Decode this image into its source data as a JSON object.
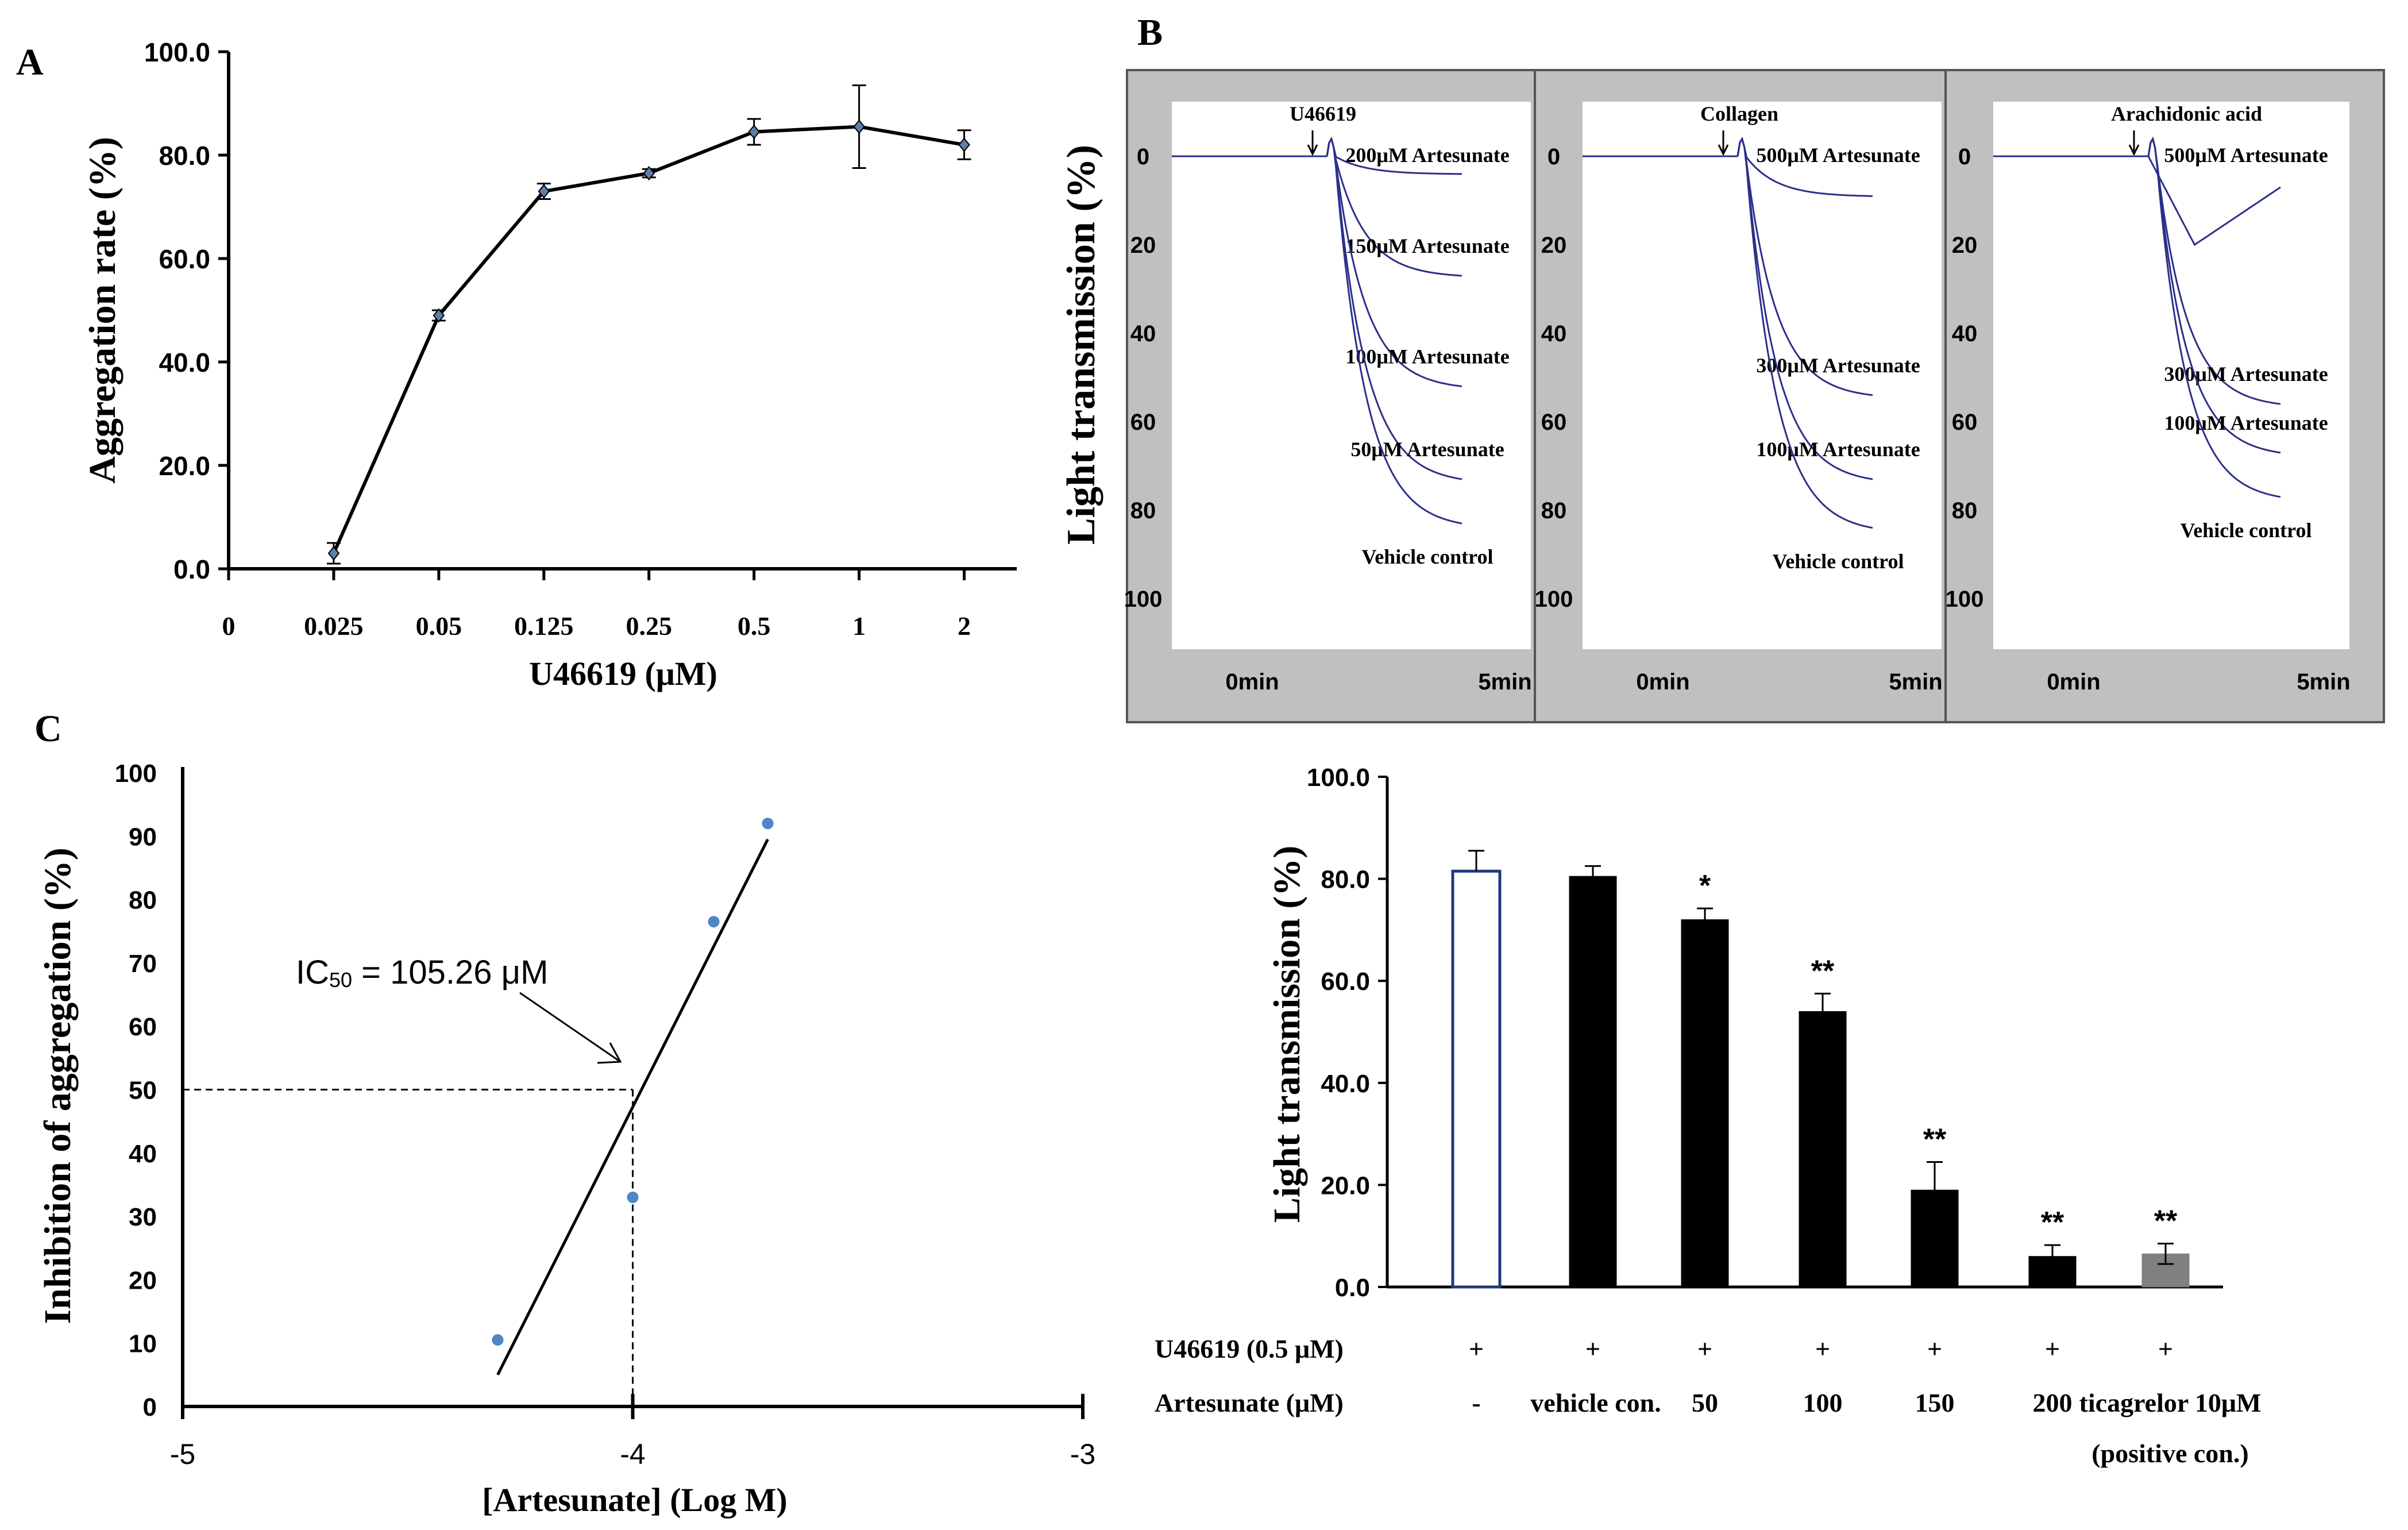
{
  "panel_labels": {
    "a": "A",
    "b": "B",
    "c": "C"
  },
  "chart_data": [
    {
      "id": "A",
      "type": "line",
      "categories": [
        "0",
        "0.025",
        "0.05",
        "0.125",
        "0.25",
        "0.5",
        "1",
        "2"
      ],
      "values": [
        null,
        3.0,
        49.0,
        73.0,
        76.5,
        84.5,
        85.5,
        82.0
      ],
      "errors": [
        null,
        2.0,
        1.0,
        1.5,
        0.8,
        2.5,
        8.0,
        2.8
      ],
      "y_ticks": [
        "0.0",
        "20.0",
        "40.0",
        "60.0",
        "80.0",
        "100.0"
      ],
      "xlabel": "U46619 (μM)",
      "ylabel": "Aggregation rate (%)",
      "ylim": [
        0,
        100
      ],
      "line_color": "#000000",
      "marker_color": "#5a7fa8"
    },
    {
      "id": "B-traces",
      "type": "line",
      "ylabel": "Light transmission (%)",
      "y_ticks": [
        "0",
        "20",
        "40",
        "60",
        "80",
        "100"
      ],
      "ylim": [
        0,
        100
      ],
      "x_ticks": [
        "0min",
        "5min"
      ],
      "trace_color": "#2b2f8a",
      "panels": [
        {
          "agonist": "U46619",
          "traces": [
            {
              "label": "200μM Artesunate",
              "final": 4
            },
            {
              "label": "150μM Artesunate",
              "final": 27
            },
            {
              "label": "100μM Artesunate",
              "final": 52
            },
            {
              "label": "50μM Artesunate",
              "final": 73
            },
            {
              "label": "Vehicle control",
              "final": 83
            }
          ]
        },
        {
          "agonist": "Collagen",
          "traces": [
            {
              "label": "500μM Artesunate",
              "final": 9
            },
            {
              "label": "300μM Artesunate",
              "final": 54
            },
            {
              "label": "100μM Artesunate",
              "final": 73
            },
            {
              "label": "Vehicle control",
              "final": 84
            }
          ]
        },
        {
          "agonist": "Arachidonic acid",
          "traces": [
            {
              "label": "500μM Artesunate",
              "final": 7
            },
            {
              "label": "300μM Artesunate",
              "final": 56
            },
            {
              "label": "100μM Artesunate",
              "final": 67
            },
            {
              "label": "Vehicle control",
              "final": 77
            }
          ]
        }
      ]
    },
    {
      "id": "B-bar",
      "type": "bar",
      "ylabel": "Light  transmission (%)",
      "y_ticks": [
        "0.0",
        "20.0",
        "40.0",
        "60.0",
        "80.0",
        "100.0"
      ],
      "ylim": [
        0,
        100
      ],
      "values": [
        81.5,
        80.5,
        72.0,
        54.0,
        19.0,
        6.0,
        6.5
      ],
      "errors": [
        4.0,
        2.0,
        2.2,
        3.5,
        5.5,
        2.2,
        2.0
      ],
      "significance": [
        "",
        "",
        "*",
        "**",
        "**",
        "**",
        "**"
      ],
      "bar_colors": [
        "#ffffff",
        "#000000",
        "#000000",
        "#000000",
        "#000000",
        "#000000",
        "#808080"
      ],
      "outline_color": "#1f3a7a",
      "row1_label": "U46619  (0.5 μM)",
      "row1_values": [
        "+",
        "+",
        "+",
        "+",
        "+",
        "+",
        "+"
      ],
      "row2_label": "Artesunate (μM)",
      "row2_values": [
        "-",
        "vehicle con.",
        "50",
        "100",
        "150",
        "200",
        "ticagrelor 10μM"
      ],
      "row2_extra": "(positive con.)"
    },
    {
      "id": "C",
      "type": "scatter",
      "xlabel": "[Artesunate] (Log M)",
      "ylabel": "Inhibition of aggregation  (%)",
      "xlim": [
        -5,
        -3
      ],
      "ylim": [
        0,
        100
      ],
      "x_ticks": [
        "-5",
        "-4",
        "-3"
      ],
      "y_ticks": [
        "0",
        "10",
        "20",
        "30",
        "40",
        "50",
        "60",
        "70",
        "80",
        "90",
        "100"
      ],
      "points": [
        {
          "x": -4.3,
          "y": 10.5
        },
        {
          "x": -4.0,
          "y": 33.0
        },
        {
          "x": -3.82,
          "y": 76.5
        },
        {
          "x": -3.7,
          "y": 92.0
        }
      ],
      "fit_line": [
        {
          "x": -4.3,
          "y": 5
        },
        {
          "x": -3.7,
          "y": 89.5
        }
      ],
      "ic50_point": {
        "x": -4.0,
        "y": 50
      },
      "annotation_main": "IC",
      "annotation_sub": "50",
      "annotation_rest": " =  105.26 μM",
      "point_color": "#4f86c6"
    }
  ]
}
